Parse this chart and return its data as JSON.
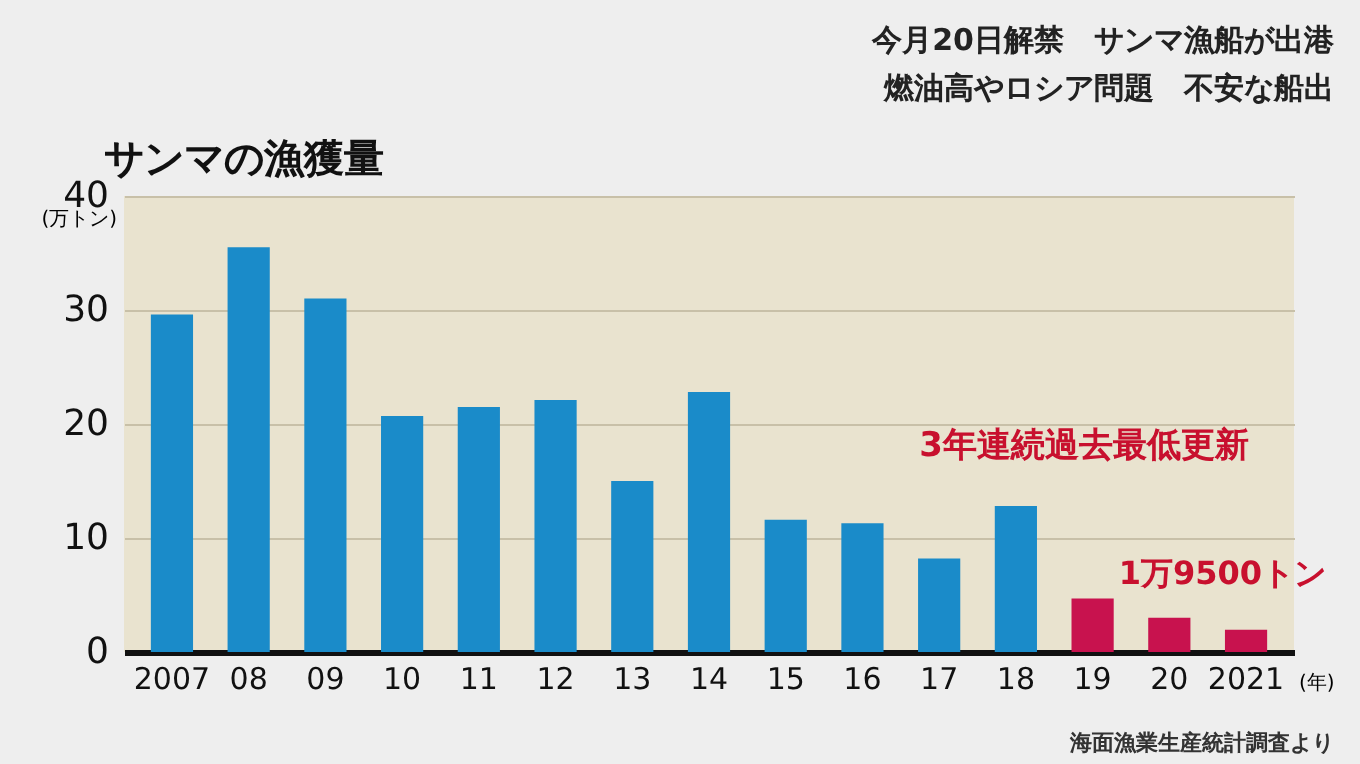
{
  "chart_data": {
    "type": "bar",
    "title": "サンマの漁獲量",
    "ylabel": "(万トン)",
    "xlabel": "(年)",
    "categories": [
      "2007",
      "08",
      "09",
      "10",
      "11",
      "12",
      "13",
      "14",
      "15",
      "16",
      "17",
      "18",
      "19",
      "20",
      "2021"
    ],
    "values": [
      29.6,
      35.5,
      31.0,
      20.7,
      21.5,
      22.1,
      15.0,
      22.8,
      11.6,
      11.3,
      8.2,
      12.8,
      4.7,
      3.0,
      1.95
    ],
    "colors": [
      "#1a8bc9",
      "#1a8bc9",
      "#1a8bc9",
      "#1a8bc9",
      "#1a8bc9",
      "#1a8bc9",
      "#1a8bc9",
      "#1a8bc9",
      "#1a8bc9",
      "#1a8bc9",
      "#1a8bc9",
      "#1a8bc9",
      "#c8124e",
      "#c8124e",
      "#c8124e"
    ],
    "ylim": [
      0,
      40
    ],
    "yticks": [
      0,
      10,
      20,
      30,
      40
    ],
    "grid": "y",
    "annotations": [
      "今月20日解禁　サンマ漁船が出港",
      "燃油高やロシア問題　不安な船出",
      "3年連続過去最低更新",
      "海面漁業生産統計調査より",
      {
        "text": "1万9500トン",
        "x": "2021",
        "y": 1.95
      }
    ]
  }
}
